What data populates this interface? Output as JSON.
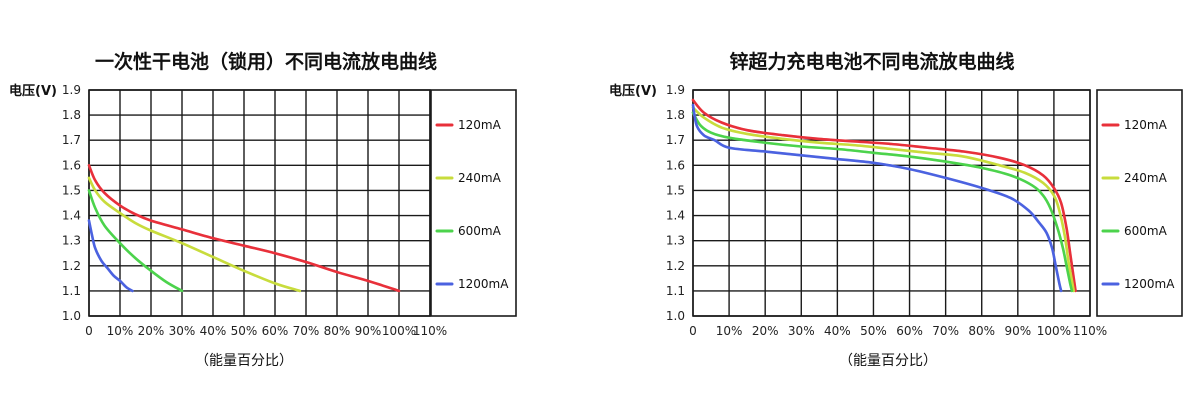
{
  "chart_data": [
    {
      "type": "line",
      "title": "一次性干电池（锁用）不同电流放电曲线",
      "ylabel": "电压(V)",
      "xlabel": "（能量百分比）",
      "xlim": [
        0,
        110
      ],
      "ylim": [
        1.0,
        1.9
      ],
      "x_ticks": [
        "0",
        "10%",
        "20%",
        "30%",
        "40%",
        "50%",
        "60%",
        "70%",
        "80%",
        "90%",
        "100%",
        "110%"
      ],
      "y_ticks": [
        "1.0",
        "1.1",
        "1.2",
        "1.3",
        "1.4",
        "1.5",
        "1.6",
        "1.7",
        "1.8",
        "1.9"
      ],
      "grid": true,
      "legend": "right",
      "series": [
        {
          "name": "120mA",
          "color": "#e8303a",
          "x": [
            0,
            2,
            5,
            10,
            15,
            20,
            30,
            40,
            50,
            60,
            70,
            80,
            90,
            100
          ],
          "y": [
            1.6,
            1.54,
            1.49,
            1.44,
            1.405,
            1.38,
            1.345,
            1.31,
            1.28,
            1.25,
            1.215,
            1.175,
            1.14,
            1.1
          ]
        },
        {
          "name": "240mA",
          "color": "#c8dc3c",
          "x": [
            0,
            2,
            5,
            10,
            15,
            20,
            30,
            40,
            50,
            60,
            68
          ],
          "y": [
            1.55,
            1.5,
            1.455,
            1.41,
            1.37,
            1.34,
            1.29,
            1.235,
            1.18,
            1.13,
            1.1
          ]
        },
        {
          "name": "600mA",
          "color": "#4cd34c",
          "x": [
            0,
            2,
            5,
            10,
            15,
            20,
            25,
            30
          ],
          "y": [
            1.5,
            1.43,
            1.36,
            1.29,
            1.23,
            1.18,
            1.135,
            1.1
          ]
        },
        {
          "name": "1200mA",
          "color": "#4b62e0",
          "x": [
            0,
            1,
            2,
            4,
            6,
            8,
            10,
            12,
            14
          ],
          "y": [
            1.38,
            1.32,
            1.27,
            1.22,
            1.19,
            1.16,
            1.14,
            1.115,
            1.1
          ]
        }
      ]
    },
    {
      "type": "line",
      "title": "锌超力充电电池不同电流放电曲线",
      "ylabel": "电压(V)",
      "xlabel": "（能量百分比）",
      "xlim": [
        0,
        110
      ],
      "ylim": [
        1.0,
        1.9
      ],
      "x_ticks": [
        "0",
        "10%",
        "20%",
        "30%",
        "40%",
        "50%",
        "60%",
        "70%",
        "80%",
        "90%",
        "100%",
        "110%"
      ],
      "y_ticks": [
        "1.0",
        "1.1",
        "1.2",
        "1.3",
        "1.4",
        "1.5",
        "1.6",
        "1.7",
        "1.8",
        "1.9"
      ],
      "grid": true,
      "legend": "right",
      "series": [
        {
          "name": "120mA",
          "color": "#e8303a",
          "x": [
            0,
            3,
            8,
            15,
            25,
            35,
            45,
            55,
            65,
            75,
            85,
            92,
            97,
            100,
            102,
            103.5,
            104.5,
            105.5,
            106
          ],
          "y": [
            1.86,
            1.81,
            1.77,
            1.74,
            1.72,
            1.705,
            1.695,
            1.685,
            1.67,
            1.655,
            1.63,
            1.6,
            1.56,
            1.51,
            1.45,
            1.35,
            1.25,
            1.15,
            1.1
          ]
        },
        {
          "name": "240mA",
          "color": "#c8dc3c",
          "x": [
            0,
            3,
            8,
            15,
            25,
            35,
            45,
            55,
            65,
            75,
            85,
            92,
            97,
            100,
            101.5,
            103,
            104,
            105,
            105.5
          ],
          "y": [
            1.83,
            1.79,
            1.75,
            1.725,
            1.705,
            1.69,
            1.68,
            1.665,
            1.65,
            1.635,
            1.6,
            1.57,
            1.53,
            1.48,
            1.42,
            1.32,
            1.22,
            1.14,
            1.1
          ]
        },
        {
          "name": "600mA",
          "color": "#4cd34c",
          "x": [
            0,
            2,
            5,
            10,
            20,
            30,
            40,
            50,
            60,
            70,
            80,
            88,
            94,
            97,
            99,
            101,
            102.5,
            103.5,
            104.5,
            105
          ],
          "y": [
            1.81,
            1.76,
            1.73,
            1.71,
            1.69,
            1.675,
            1.665,
            1.65,
            1.635,
            1.615,
            1.59,
            1.56,
            1.52,
            1.48,
            1.43,
            1.35,
            1.27,
            1.2,
            1.13,
            1.1
          ]
        },
        {
          "name": "1200mA",
          "color": "#4b62e0",
          "x": [
            0,
            1,
            3,
            6,
            10,
            20,
            30,
            40,
            50,
            60,
            70,
            80,
            88,
            93,
            96,
            98,
            99.5,
            100.5,
            101.5,
            102
          ],
          "y": [
            1.84,
            1.76,
            1.72,
            1.7,
            1.67,
            1.655,
            1.64,
            1.625,
            1.61,
            1.585,
            1.55,
            1.51,
            1.47,
            1.42,
            1.37,
            1.33,
            1.27,
            1.2,
            1.13,
            1.1
          ]
        }
      ]
    }
  ]
}
